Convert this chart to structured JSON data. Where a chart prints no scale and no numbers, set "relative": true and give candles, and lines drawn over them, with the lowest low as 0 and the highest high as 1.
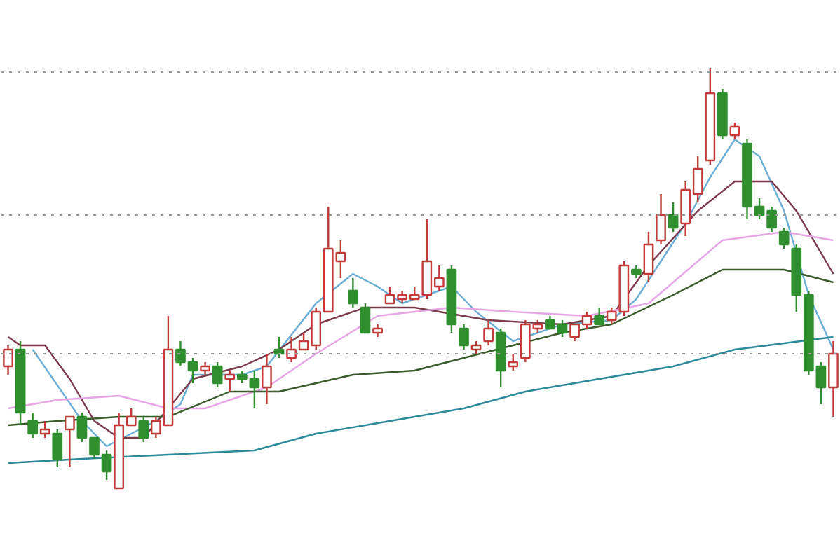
{
  "chart_data": {
    "type": "candlestick",
    "relative": true,
    "categories": [
      null,
      null,
      null,
      null,
      null,
      null,
      null,
      null,
      null,
      null,
      null,
      null,
      null,
      null,
      null,
      null,
      null,
      null,
      null,
      null,
      null,
      null,
      null,
      null,
      null,
      null,
      null,
      null,
      null,
      null,
      null,
      null,
      null,
      null,
      null,
      null,
      null,
      null,
      null,
      null,
      null,
      null,
      null,
      null,
      null,
      null,
      null,
      null,
      null,
      null,
      null,
      null,
      null,
      null,
      null,
      null,
      null,
      null,
      null,
      null,
      null,
      null,
      null,
      null,
      null,
      null,
      null,
      null
    ],
    "ohlc": [
      [
        0.29,
        0.34,
        0.27,
        0.33
      ],
      [
        0.33,
        0.35,
        0.15,
        0.18
      ],
      [
        0.16,
        0.18,
        0.12,
        0.13
      ],
      [
        0.13,
        0.16,
        0.12,
        0.14
      ],
      [
        0.13,
        0.14,
        0.05,
        0.07
      ],
      [
        0.14,
        0.17,
        0.05,
        0.17
      ],
      [
        0.17,
        0.18,
        0.11,
        0.12
      ],
      [
        0.12,
        0.12,
        0.07,
        0.08
      ],
      [
        0.08,
        0.09,
        0.02,
        0.04
      ],
      [
        0.0,
        0.18,
        0.0,
        0.15
      ],
      [
        0.15,
        0.19,
        0.15,
        0.17
      ],
      [
        0.16,
        0.17,
        0.11,
        0.12
      ],
      [
        0.13,
        0.17,
        0.12,
        0.16
      ],
      [
        0.15,
        0.41,
        0.15,
        0.33
      ],
      [
        0.33,
        0.35,
        0.29,
        0.3
      ],
      [
        0.3,
        0.31,
        0.25,
        0.28
      ],
      [
        0.28,
        0.3,
        0.27,
        0.29
      ],
      [
        0.29,
        0.3,
        0.24,
        0.25
      ],
      [
        0.26,
        0.28,
        0.23,
        0.27
      ],
      [
        0.27,
        0.28,
        0.25,
        0.26
      ],
      [
        0.26,
        0.28,
        0.19,
        0.24
      ],
      [
        0.24,
        0.32,
        0.2,
        0.29
      ],
      [
        0.33,
        0.36,
        0.31,
        0.32
      ],
      [
        0.31,
        0.36,
        0.3,
        0.33
      ],
      [
        0.33,
        0.37,
        0.33,
        0.35
      ],
      [
        0.34,
        0.43,
        0.33,
        0.42
      ],
      [
        0.42,
        0.67,
        0.42,
        0.57
      ],
      [
        0.54,
        0.59,
        0.5,
        0.56
      ],
      [
        0.47,
        0.5,
        0.43,
        0.44
      ],
      [
        0.43,
        0.44,
        0.37,
        0.37
      ],
      [
        0.37,
        0.39,
        0.36,
        0.38
      ],
      [
        0.44,
        0.48,
        0.44,
        0.46
      ],
      [
        0.45,
        0.47,
        0.44,
        0.46
      ],
      [
        0.45,
        0.48,
        0.45,
        0.46
      ],
      [
        0.46,
        0.64,
        0.45,
        0.54
      ],
      [
        0.48,
        0.53,
        0.47,
        0.5
      ],
      [
        0.52,
        0.53,
        0.37,
        0.39
      ],
      [
        0.38,
        0.39,
        0.33,
        0.34
      ],
      [
        0.33,
        0.35,
        0.32,
        0.34
      ],
      [
        0.35,
        0.4,
        0.34,
        0.38
      ],
      [
        0.37,
        0.38,
        0.24,
        0.28
      ],
      [
        0.29,
        0.32,
        0.28,
        0.3
      ],
      [
        0.31,
        0.4,
        0.3,
        0.39
      ],
      [
        0.38,
        0.4,
        0.37,
        0.39
      ],
      [
        0.4,
        0.41,
        0.38,
        0.38
      ],
      [
        0.39,
        0.4,
        0.36,
        0.37
      ],
      [
        0.36,
        0.39,
        0.35,
        0.39
      ],
      [
        0.39,
        0.42,
        0.38,
        0.41
      ],
      [
        0.41,
        0.43,
        0.39,
        0.39
      ],
      [
        0.4,
        0.43,
        0.39,
        0.42
      ],
      [
        0.42,
        0.54,
        0.41,
        0.53
      ],
      [
        0.52,
        0.53,
        0.5,
        0.51
      ],
      [
        0.51,
        0.61,
        0.49,
        0.58
      ],
      [
        0.59,
        0.7,
        0.58,
        0.65
      ],
      [
        0.65,
        0.68,
        0.61,
        0.62
      ],
      [
        0.63,
        0.73,
        0.6,
        0.71
      ],
      [
        0.7,
        0.79,
        0.68,
        0.76
      ],
      [
        0.78,
        1.0,
        0.77,
        0.94
      ],
      [
        0.94,
        0.95,
        0.83,
        0.84
      ],
      [
        0.84,
        0.87,
        0.83,
        0.86
      ],
      [
        0.82,
        0.83,
        0.64,
        0.67
      ],
      [
        0.67,
        0.69,
        0.64,
        0.65
      ],
      [
        0.66,
        0.67,
        0.61,
        0.62
      ],
      [
        0.61,
        0.62,
        0.57,
        0.58
      ],
      [
        0.57,
        0.58,
        0.42,
        0.46
      ],
      [
        0.46,
        0.47,
        0.27,
        0.28
      ],
      [
        0.29,
        0.3,
        0.2,
        0.24
      ],
      [
        0.24,
        0.35,
        0.17,
        0.32
      ]
    ],
    "colors": [
      "#c23a3a",
      "#2f8f2f",
      "#2f8f2f",
      "#c23a3a",
      "#2f8f2f",
      "#c23a3a",
      "#2f8f2f",
      "#2f8f2f",
      "#2f8f2f",
      "#c23a3a",
      "#c23a3a",
      "#2f8f2f",
      "#c23a3a",
      "#c23a3a",
      "#2f8f2f",
      "#2f8f2f",
      "#c23a3a",
      "#2f8f2f",
      "#c23a3a",
      "#2f8f2f",
      "#2f8f2f",
      "#c23a3a",
      "#2f8f2f",
      "#c23a3a",
      "#c23a3a",
      "#c23a3a",
      "#c23a3a",
      "#c23a3a",
      "#2f8f2f",
      "#2f8f2f",
      "#c23a3a",
      "#c23a3a",
      "#c23a3a",
      "#c23a3a",
      "#c23a3a",
      "#c23a3a",
      "#2f8f2f",
      "#2f8f2f",
      "#c23a3a",
      "#c23a3a",
      "#2f8f2f",
      "#c23a3a",
      "#c23a3a",
      "#c23a3a",
      "#2f8f2f",
      "#2f8f2f",
      "#c23a3a",
      "#c23a3a",
      "#2f8f2f",
      "#c23a3a",
      "#c23a3a",
      "#2f8f2f",
      "#c23a3a",
      "#c23a3a",
      "#2f8f2f",
      "#c23a3a",
      "#c23a3a",
      "#c23a3a",
      "#2f8f2f",
      "#c23a3a",
      "#2f8f2f",
      "#2f8f2f",
      "#2f8f2f",
      "#2f8f2f",
      "#2f8f2f",
      "#2f8f2f",
      "#2f8f2f",
      "#c23a3a"
    ],
    "series": [
      {
        "type": "line",
        "color": "#6aaed6",
        "values": [
          null,
          null,
          0.33,
          null,
          null,
          null,
          0.16,
          null,
          0.1,
          null,
          0.13,
          null,
          0.16,
          null,
          0.2,
          0.27,
          null,
          null,
          null,
          0.27,
          null,
          0.29,
          null,
          null,
          null,
          0.44,
          null,
          null,
          0.51,
          null,
          0.48,
          null,
          0.44,
          null,
          null,
          null,
          0.48,
          null,
          0.42,
          null,
          null,
          0.35,
          null,
          null,
          null,
          0.39,
          null,
          null,
          null,
          0.4,
          null,
          0.45,
          null,
          null,
          null,
          0.63,
          null,
          0.74,
          null,
          0.83,
          null,
          0.79,
          null,
          0.66,
          null,
          0.46,
          null,
          0.33
        ]
      },
      {
        "type": "line",
        "color": "#7a3a4a",
        "values": [
          0.36,
          0.34,
          null,
          0.34,
          null,
          0.26,
          null,
          0.16,
          null,
          0.12,
          null,
          0.12,
          null,
          0.19,
          null,
          0.26,
          null,
          null,
          null,
          0.29,
          null,
          null,
          0.33,
          null,
          null,
          0.39,
          null,
          null,
          null,
          0.43,
          null,
          null,
          null,
          0.43,
          null,
          null,
          null,
          null,
          null,
          0.4,
          null,
          null,
          null,
          null,
          null,
          0.39,
          null,
          null,
          null,
          0.41,
          null,
          null,
          0.53,
          null,
          null,
          null,
          0.66,
          null,
          null,
          0.73,
          null,
          null,
          0.73,
          null,
          0.66,
          null,
          null,
          0.51
        ]
      },
      {
        "type": "line",
        "color": "#e6a6e6",
        "values": [
          0.19,
          null,
          null,
          null,
          0.21,
          null,
          null,
          null,
          null,
          0.22,
          null,
          null,
          null,
          0.19,
          null,
          null,
          0.19,
          null,
          null,
          null,
          null,
          0.24,
          null,
          null,
          null,
          0.32,
          null,
          null,
          null,
          null,
          0.41,
          null,
          null,
          null,
          null,
          null,
          0.43,
          null,
          null,
          null,
          null,
          0.42,
          null,
          null,
          null,
          null,
          null,
          0.41,
          null,
          null,
          null,
          null,
          0.44,
          null,
          null,
          null,
          null,
          null,
          0.59,
          null,
          null,
          null,
          null,
          0.61,
          null,
          null,
          null,
          0.59
        ]
      },
      {
        "type": "line",
        "color": "#3a5a2a",
        "values": [
          0.15,
          null,
          null,
          null,
          0.16,
          null,
          null,
          null,
          null,
          0.17,
          null,
          null,
          null,
          0.17,
          null,
          null,
          null,
          null,
          0.23,
          null,
          null,
          null,
          0.23,
          null,
          null,
          null,
          null,
          null,
          0.27,
          null,
          null,
          null,
          null,
          0.28,
          null,
          null,
          null,
          0.31,
          null,
          null,
          null,
          0.34,
          null,
          null,
          null,
          0.37,
          null,
          null,
          null,
          0.39,
          null,
          null,
          null,
          null,
          0.46,
          null,
          null,
          null,
          0.52,
          null,
          null,
          null,
          null,
          0.52,
          null,
          null,
          null,
          0.49
        ]
      },
      {
        "type": "line",
        "color": "#2a8a9a",
        "values": [
          0.06,
          null,
          null,
          null,
          null,
          null,
          0.07,
          null,
          null,
          null,
          null,
          null,
          null,
          0.08,
          null,
          null,
          null,
          null,
          null,
          null,
          0.09,
          null,
          null,
          null,
          null,
          0.13,
          null,
          null,
          null,
          null,
          null,
          0.16,
          null,
          null,
          null,
          null,
          null,
          0.19,
          null,
          null,
          null,
          null,
          0.23,
          null,
          null,
          null,
          null,
          null,
          0.26,
          null,
          null,
          null,
          null,
          null,
          0.29,
          null,
          null,
          null,
          null,
          0.33,
          null,
          null,
          null,
          null,
          null,
          null,
          null,
          0.36
        ]
      }
    ],
    "ref_lines": [
      {
        "axis": "y",
        "value": 0.99,
        "color": "#999999",
        "line_style": "dotted"
      },
      {
        "axis": "y",
        "value": 0.65,
        "color": "#999999",
        "line_style": "dotted"
      },
      {
        "axis": "y",
        "value": 0.32,
        "color": "#999999",
        "line_style": "dotted"
      }
    ]
  }
}
